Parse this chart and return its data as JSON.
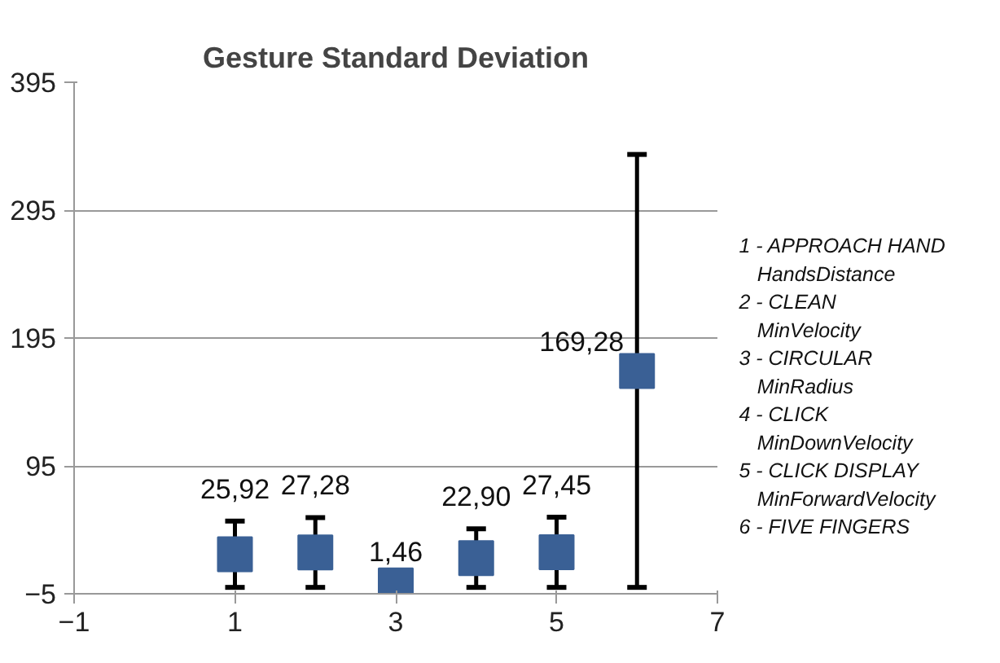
{
  "chart_data": {
    "type": "scatter",
    "title": "Gesture Standard Deviation",
    "x": [
      1,
      2,
      3,
      4,
      5,
      6
    ],
    "series": [
      {
        "color": "#3a6095",
        "values": [
          25.92,
          27.28,
          1.46,
          22.9,
          27.45,
          169.28
        ],
        "errors": [
          25.92,
          27.28,
          1.46,
          22.9,
          27.45,
          169.28
        ],
        "value_labels": [
          "25,92",
          "27,28",
          "1,46",
          "22,90",
          "27,45",
          "169,28"
        ]
      }
    ],
    "marker": "square",
    "xlim": [
      -1,
      7
    ],
    "xticks": [
      -1,
      1,
      3,
      5,
      7
    ],
    "ylim": [
      -5,
      395
    ],
    "yticks": [
      -5,
      95,
      195,
      295,
      395
    ],
    "grid": "y",
    "annotations": [
      "1 - APPROACH HAND\nHandsDistance",
      "2 - CLEAN\nMinVelocity",
      "3 - CIRCULAR\nMinRadius",
      "4 - CLICK\nMinDownVelocity",
      "5 - CLICK DISPLAY\nMinForwardVelocity",
      "6 - FIVE FINGERS"
    ]
  }
}
